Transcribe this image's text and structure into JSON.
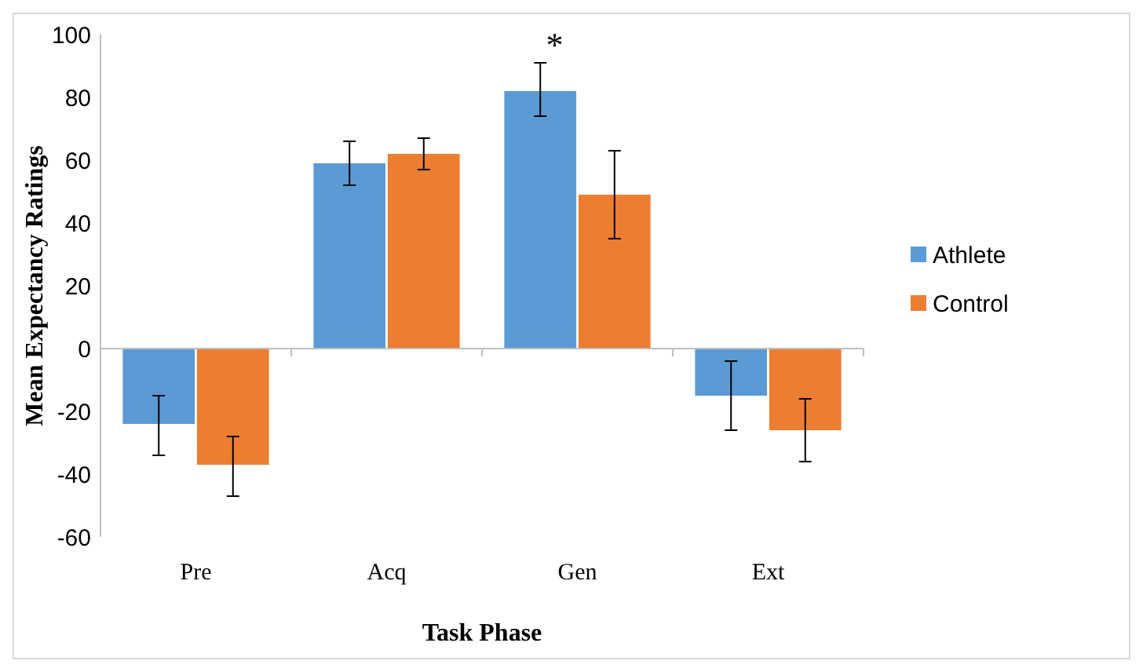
{
  "chart_data": {
    "type": "bar",
    "xlabel": "Task Phase",
    "ylabel": "Mean Expectancy Ratings",
    "categories": [
      "Pre",
      "Acq",
      "Gen",
      "Ext"
    ],
    "series": [
      {
        "name": "Athlete",
        "color": "#5b9bd5",
        "values": [
          -24,
          59,
          82,
          -15
        ],
        "errors": [
          [
            -34,
            -15
          ],
          [
            52,
            66
          ],
          [
            74,
            91
          ],
          [
            -26,
            -4
          ]
        ]
      },
      {
        "name": "Control",
        "color": "#ed7d31",
        "values": [
          -37,
          62,
          49,
          -26
        ],
        "errors": [
          [
            -47,
            -28
          ],
          [
            57,
            67
          ],
          [
            35,
            63
          ],
          [
            -36,
            -16
          ]
        ]
      }
    ],
    "ylim": [
      -60,
      100
    ],
    "yticks": [
      -60,
      -40,
      -20,
      0,
      20,
      40,
      60,
      80,
      100
    ],
    "legend": "right",
    "annotations": [
      "*"
    ]
  }
}
